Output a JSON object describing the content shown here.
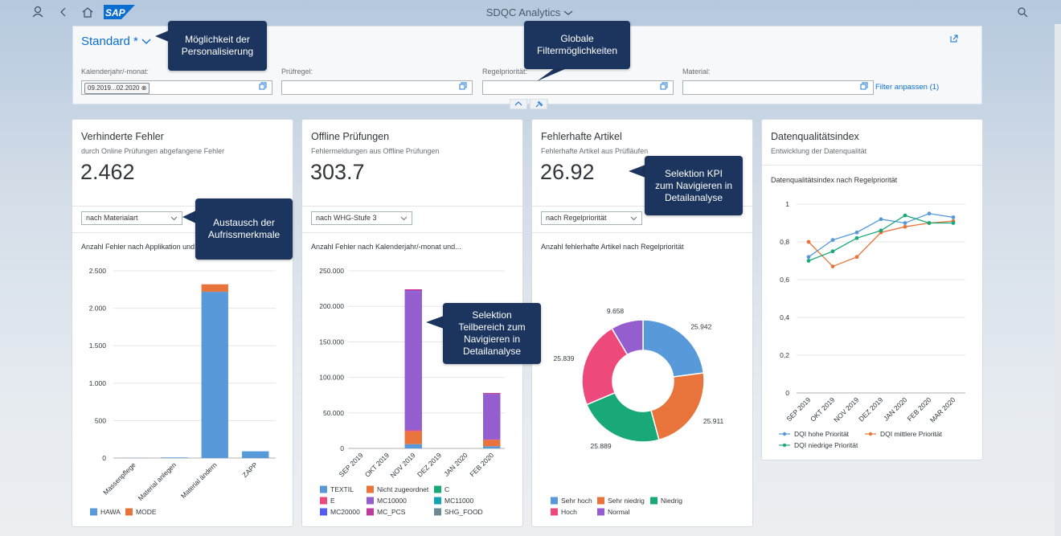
{
  "header": {
    "logo": "SAP",
    "title": "SDQC Analytics"
  },
  "filter_bar": {
    "variant": "Standard *",
    "fields": [
      {
        "label": "Kalenderjahr/-monat:",
        "token": "09.2019...02.2020"
      },
      {
        "label": "Prüfregel:"
      },
      {
        "label": "Regelpriorität:"
      },
      {
        "label": "Material:"
      }
    ],
    "adapt": "Filter anpassen (1)"
  },
  "cards": [
    {
      "title": "Verhinderte Fehler",
      "subtitle": "durch Online Prüfungen abgefangene Fehler",
      "kpi": "2.462",
      "selector": "nach Materialart"
    },
    {
      "title": "Offline Prüfungen",
      "subtitle": "Fehlermeldungen aus Offline Prüfungen",
      "kpi": "303.7",
      "selector": "nach WHG-Stufe 3"
    },
    {
      "title": "Fehlerhafte Artikel",
      "subtitle": "Fehlerhafte Artikel aus Prüfläufen",
      "kpi": "26.92",
      "selector": "nach Regelpriorität"
    },
    {
      "title": "Datenqualitätsindex",
      "subtitle": "Entwicklung der Datenqualität"
    }
  ],
  "callouts": [
    {
      "lines": [
        "Möglichkeit der",
        "Personalisierung"
      ]
    },
    {
      "lines": [
        "Globale",
        "Filtermöglichkeiten"
      ]
    },
    {
      "lines": [
        "Austausch der",
        "Aufrissmerkmale"
      ]
    },
    {
      "lines": [
        "Selektion KPI",
        "zum Navigieren in",
        "Detailanalyse"
      ]
    },
    {
      "lines": [
        "Selektion",
        "Teilbereich zum",
        "Navigieren in",
        "Detailanalyse"
      ]
    }
  ],
  "chart_data": [
    {
      "type": "stacked_bar",
      "title": "Anzahl Fehler nach Applikation und...",
      "categories": [
        "Massenpflege",
        "Material anlegen",
        "Material ändern",
        "ZAPP"
      ],
      "series": [
        {
          "name": "HAWA",
          "color": "#5899da",
          "values": [
            2,
            8,
            2220,
            90
          ]
        },
        {
          "name": "MODE",
          "color": "#e8743b",
          "values": [
            0,
            0,
            100,
            0
          ]
        }
      ],
      "ylim": [
        0,
        2500
      ],
      "yticks": [
        0,
        500,
        {
          "value": 1000,
          "label": "1.000"
        },
        {
          "value": 1500,
          "label": "1.500"
        },
        {
          "value": 2000,
          "label": "2.000"
        },
        {
          "value": 2500,
          "label": "2.500"
        }
      ],
      "grid": true
    },
    {
      "type": "stacked_bar",
      "title": "Anzahl Fehler nach Kalenderjahr/-monat und...",
      "categories": [
        "SEP 2019",
        "OKT 2019",
        "NOV 2019",
        "DEZ 2019",
        "JAN 2020",
        "FEB 2020"
      ],
      "series": [
        {
          "name": "TEXTIL",
          "color": "#5899da",
          "values": [
            0,
            0,
            6000,
            0,
            0,
            3000
          ]
        },
        {
          "name": "Nicht zugeordnet",
          "color": "#e8743b",
          "values": [
            0,
            0,
            18000,
            0,
            0,
            9000
          ]
        },
        {
          "name": "C",
          "color": "#19a979",
          "values": [
            0,
            0,
            0,
            0,
            0,
            0
          ]
        },
        {
          "name": "E",
          "color": "#ed4a7b",
          "values": [
            0,
            0,
            1500,
            0,
            0,
            500
          ]
        },
        {
          "name": "MC10000",
          "color": "#945ecf",
          "values": [
            0,
            0,
            195000,
            0,
            0,
            64000
          ]
        },
        {
          "name": "MC11000",
          "color": "#13a4b4",
          "values": [
            0,
            0,
            0,
            0,
            0,
            0
          ]
        },
        {
          "name": "MC20000",
          "color": "#525df4",
          "values": [
            0,
            0,
            1000,
            0,
            0,
            0
          ]
        },
        {
          "name": "MC_PCS",
          "color": "#bf399e",
          "values": [
            0,
            0,
            2500,
            0,
            0,
            1500
          ]
        },
        {
          "name": "SHG_FOOD",
          "color": "#6c8893",
          "values": [
            0,
            0,
            0,
            0,
            0,
            0
          ]
        }
      ],
      "ylim": [
        0,
        250000
      ],
      "yticks": [
        0,
        {
          "value": 50000,
          "label": "50.000"
        },
        {
          "value": 100000,
          "label": "100.000"
        },
        {
          "value": 150000,
          "label": "150.000"
        },
        {
          "value": 200000,
          "label": "200.000"
        },
        {
          "value": 250000,
          "label": "250.000"
        }
      ],
      "grid": true
    },
    {
      "type": "donut",
      "title": "Anzahl fehlerhafte Artikel nach Regelpriorität",
      "categories": [
        "Sehr hoch",
        "Sehr niedrig",
        "Niedrig",
        "Hoch",
        "Normal"
      ],
      "values": [
        25942,
        25911,
        25889,
        25839,
        9658
      ],
      "value_labels": [
        "25.942",
        "25.911",
        "25.889",
        "25.839",
        "9.658"
      ],
      "colors": [
        "#5899da",
        "#e8743b",
        "#19a979",
        "#ed4a7b",
        "#945ecf"
      ]
    },
    {
      "type": "line",
      "title": "Datenqualitätsindex nach Regelpriorität",
      "categories": [
        "SEP 2019",
        "OKT 2019",
        "NOV 2019",
        "DEZ 2019",
        "JAN 2020",
        "FEB 2020",
        "MAR 2020"
      ],
      "series": [
        {
          "name": "DQI hohe Priorität",
          "color": "#5899da",
          "values": [
            0.72,
            0.81,
            0.85,
            0.92,
            0.9,
            0.95,
            0.93
          ]
        },
        {
          "name": "DQI mittlere Priorität",
          "color": "#e8743b",
          "values": [
            0.8,
            0.67,
            0.72,
            0.85,
            0.88,
            0.9,
            0.91
          ]
        },
        {
          "name": "DQI niedrige Priorität",
          "color": "#19a979",
          "values": [
            0.7,
            0.75,
            0.82,
            0.86,
            0.94,
            0.9,
            0.9
          ]
        }
      ],
      "ylim": [
        0,
        1
      ],
      "yticks": [
        0,
        {
          "value": 0.2,
          "label": "0,2"
        },
        {
          "value": 0.4,
          "label": "0,4"
        },
        {
          "value": 0.6,
          "label": "0,6"
        },
        {
          "value": 0.8,
          "label": "0,8"
        },
        1
      ],
      "grid": true
    }
  ]
}
